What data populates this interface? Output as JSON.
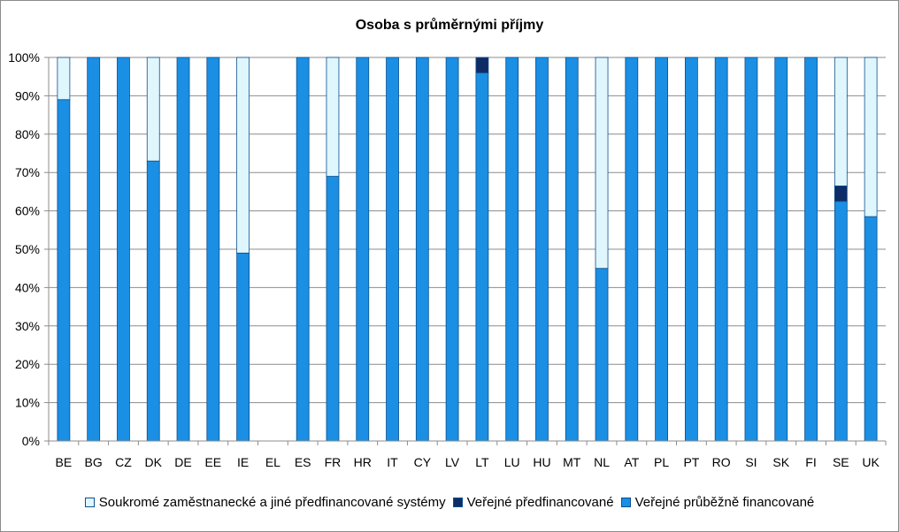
{
  "chart_data": {
    "type": "bar",
    "stacked": true,
    "title": "Osoba s průměrnými příjmy",
    "xlabel": "",
    "ylabel": "",
    "ylim": [
      0,
      100
    ],
    "yticks": [
      "0%",
      "10%",
      "20%",
      "30%",
      "40%",
      "50%",
      "60%",
      "70%",
      "80%",
      "90%",
      "100%"
    ],
    "grid": true,
    "legend_position": "bottom",
    "categories": [
      "BE",
      "BG",
      "CZ",
      "DK",
      "DE",
      "EE",
      "IE",
      "EL",
      "ES",
      "FR",
      "HR",
      "IT",
      "CY",
      "LV",
      "LT",
      "LU",
      "HU",
      "MT",
      "NL",
      "AT",
      "PL",
      "PT",
      "RO",
      "SI",
      "SK",
      "FI",
      "SE",
      "UK"
    ],
    "series": [
      {
        "name": "Veřejné průběžně financované",
        "color": "#1a8fe3",
        "values": [
          89,
          100,
          100,
          73,
          100,
          100,
          49,
          0,
          100,
          69,
          100,
          100,
          100,
          100,
          96,
          100,
          100,
          100,
          45,
          100,
          100,
          100,
          100,
          100,
          100,
          100,
          62.5,
          58.5
        ]
      },
      {
        "name": "Veřejné předfinancované",
        "color": "#0f2c66",
        "values": [
          0,
          0,
          0,
          0,
          0,
          0,
          0,
          0,
          0,
          0,
          0,
          0,
          0,
          0,
          4,
          0,
          0,
          0,
          0,
          0,
          0,
          0,
          0,
          0,
          0,
          0,
          4,
          0
        ]
      },
      {
        "name": "Soukromé zaměstnanecké a jiné předfinancované systémy",
        "color": "#dff6fc",
        "values": [
          11,
          0,
          0,
          27,
          0,
          0,
          51,
          0,
          0,
          31,
          0,
          0,
          0,
          0,
          0,
          0,
          0,
          0,
          55,
          0,
          0,
          0,
          0,
          0,
          0,
          0,
          33.5,
          41.5
        ]
      }
    ],
    "legend": [
      {
        "name": "Soukromé zaměstnanecké a jiné předfinancované systémy",
        "color": "#dff6fc"
      },
      {
        "name": "Veřejné předfinancované",
        "color": "#0f2c66"
      },
      {
        "name": "Veřejné průběžně financované",
        "color": "#1a8fe3"
      }
    ]
  }
}
